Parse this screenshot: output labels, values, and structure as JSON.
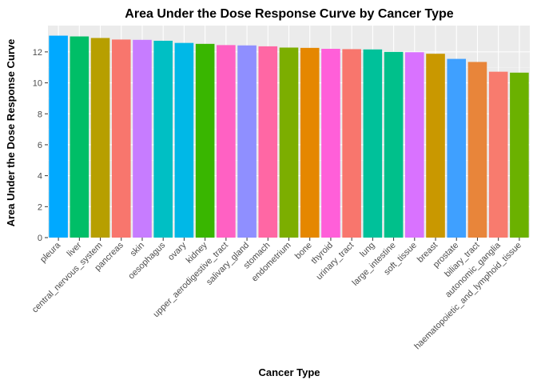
{
  "chart_data": {
    "type": "bar",
    "title": "Area Under the Dose Response Curve by Cancer Type",
    "xlabel": "Cancer Type",
    "ylabel": "Area Under the Dose Response Curve",
    "ylim": [
      0,
      13.7
    ],
    "yticks": [
      0,
      2,
      4,
      6,
      8,
      10,
      12
    ],
    "grid": true,
    "legend": "none",
    "categories": [
      "pleura",
      "liver",
      "central_nervous_system",
      "pancreas",
      "skin",
      "oesophagus",
      "ovary",
      "kidney",
      "upper_aerodigestive_tract",
      "salivary_gland",
      "stomach",
      "endometrium",
      "bone",
      "thyroid",
      "urinary_tract",
      "lung",
      "large_intestine",
      "soft_tissue",
      "breast",
      "prostate",
      "biliary_tract",
      "autonomic_ganglia",
      "haematopoietic_and_lymphoid_tissue"
    ],
    "values": [
      13.05,
      13.0,
      12.9,
      12.8,
      12.78,
      12.72,
      12.58,
      12.52,
      12.44,
      12.42,
      12.36,
      12.28,
      12.26,
      12.2,
      12.18,
      12.16,
      12.0,
      11.98,
      11.88,
      11.55,
      11.35,
      10.72,
      10.66
    ],
    "colors": [
      "#00A9FF",
      "#00BE67",
      "#B79F00",
      "#F8766D",
      "#C77CFF",
      "#00BFC4",
      "#00B8E7",
      "#39B600",
      "#FF61C3",
      "#8F8FFF",
      "#FF67A4",
      "#7CAE00",
      "#E58700",
      "#FF5FD9",
      "#F8766D",
      "#00C19A",
      "#00C08B",
      "#D972FF",
      "#C99800",
      "#3FA0FF",
      "#E8853A",
      "#F87B6E",
      "#6BB100"
    ]
  }
}
